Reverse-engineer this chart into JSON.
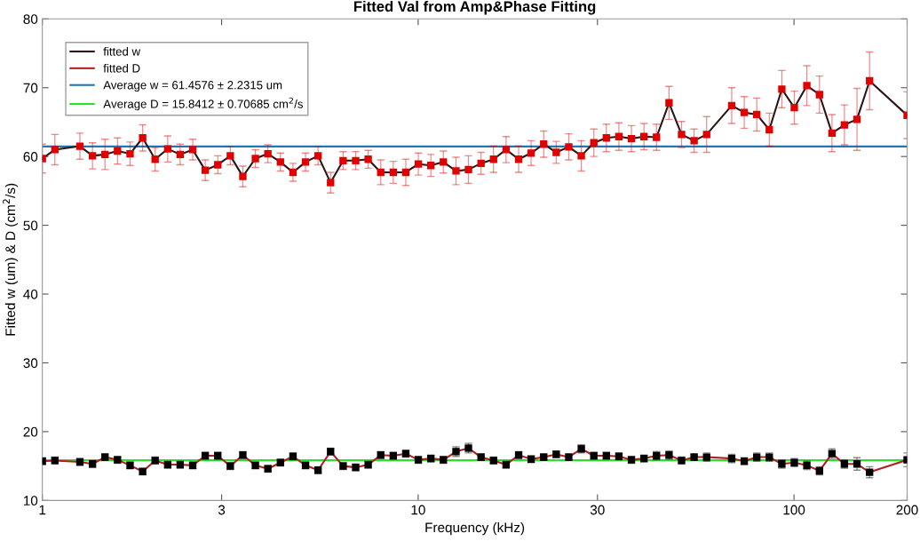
{
  "chart_data": {
    "type": "line",
    "title": "Fitted Val from Amp&Phase Fitting",
    "xlabel": "Frequency (kHz)",
    "ylabel": "Fitted w (um) & D (cm$^{2}$/s)",
    "x": [
      1.0,
      1.08,
      1.259,
      1.36,
      1.468,
      1.585,
      1.712,
      1.849,
      1.996,
      2.156,
      2.327,
      2.513,
      2.713,
      2.93,
      3.164,
      3.416,
      3.689,
      3.983,
      4.301,
      4.645,
      5.016,
      5.416,
      5.848,
      6.315,
      6.819,
      7.363,
      7.951,
      8.586,
      9.271,
      10.01,
      10.81,
      11.67,
      12.61,
      13.61,
      14.7,
      15.87,
      17.14,
      18.51,
      19.98,
      21.58,
      23.3,
      25.16,
      27.17,
      29.34,
      31.68,
      34.21,
      36.94,
      39.89,
      43.07,
      46.51,
      50.22,
      54.23,
      58.56,
      68.28,
      73.73,
      79.61,
      85.97,
      92.83,
      100.2,
      108.2,
      116.9,
      126.2,
      136.2,
      147.1,
      158.9,
      200
    ],
    "series": [
      {
        "name": "fitted w",
        "color": "#2a1414",
        "colors": [
          "#e00000",
          "#e00000",
          "#e00000",
          "#e00000",
          "#e00000",
          "#e00000",
          "#e00000",
          "#e00000",
          "#e00000",
          "#e00000",
          "#e00000",
          "#e00000",
          "#e00000",
          "#e00000",
          "#e00000",
          "#e00000",
          "#e00000",
          "#e00000",
          "#e00000",
          "#e00000",
          "#e00000",
          "#e00000",
          "#e00000",
          "#e00000",
          "#e00000",
          "#e00000",
          "#e00000",
          "#e00000",
          "#e00000",
          "#e00000",
          "#e00000",
          "#e00000",
          "#e00000",
          "#e00000",
          "#e00000",
          "#e00000",
          "#e00000",
          "#e00000",
          "#e00000",
          "#e00000",
          "#e00000",
          "#e00000",
          "#e00000",
          "#e00000",
          "#e00000",
          "#e00000",
          "#e00000",
          "#e00000",
          "#e00000",
          "#e00000",
          "#e00000",
          "#e00000",
          "#e00000",
          "#e00000",
          "#e00000",
          "#e00000",
          "#e00000",
          "#e00000",
          "#e00000",
          "#e00000",
          "#e00000",
          "#e00000",
          "#e00000",
          "#e00000",
          "#e00000",
          "#e00000"
        ],
        "values": [
          59.7,
          61.0,
          61.5,
          60.1,
          60.3,
          60.8,
          60.4,
          62.7,
          59.6,
          61.1,
          60.3,
          61.0,
          58.0,
          58.8,
          60.1,
          57.1,
          59.7,
          60.4,
          59.2,
          57.7,
          59.2,
          60.1,
          56.2,
          59.4,
          59.4,
          59.6,
          57.7,
          57.7,
          57.7,
          58.9,
          58.7,
          59.2,
          57.9,
          58.1,
          59.0,
          59.6,
          61.0,
          59.6,
          60.5,
          61.8,
          60.6,
          61.4,
          60.1,
          62.0,
          62.7,
          62.9,
          62.6,
          62.9,
          62.8,
          67.8,
          63.2,
          62.3,
          63.2,
          67.4,
          66.4,
          66.1,
          63.9,
          69.8,
          67.1,
          70.3,
          69.0,
          63.4,
          64.6,
          65.4,
          71.0,
          66.0
        ],
        "errors": [
          2.1,
          2.2,
          1.9,
          1.9,
          2.2,
          1.9,
          1.7,
          1.9,
          1.7,
          1.9,
          1.5,
          1.5,
          1.5,
          1.3,
          1.3,
          1.5,
          1.3,
          1.3,
          1.3,
          1.3,
          1.3,
          1.3,
          1.5,
          1.3,
          1.3,
          1.3,
          1.8,
          1.6,
          1.9,
          1.6,
          1.6,
          1.6,
          2.0,
          2.0,
          1.6,
          1.9,
          1.9,
          1.9,
          1.8,
          1.9,
          1.6,
          1.9,
          2.2,
          2.0,
          2.0,
          2.0,
          1.9,
          1.9,
          1.9,
          2.4,
          1.9,
          1.7,
          2.6,
          2.6,
          2.3,
          2.4,
          2.4,
          2.7,
          2.4,
          2.9,
          2.7,
          2.7,
          2.9,
          4.5,
          4.2,
          3.4
        ]
      },
      {
        "name": "fitted D",
        "color": "#b02020",
        "colors": [
          "#000000",
          "#000000",
          "#000000",
          "#000000",
          "#000000",
          "#000000",
          "#000000",
          "#000000",
          "#000000",
          "#000000",
          "#000000",
          "#000000",
          "#000000",
          "#000000",
          "#000000",
          "#000000",
          "#000000",
          "#000000",
          "#000000",
          "#000000",
          "#000000",
          "#000000",
          "#000000",
          "#000000",
          "#000000",
          "#000000",
          "#000000",
          "#000000",
          "#000000",
          "#000000",
          "#000000",
          "#000000",
          "#000000",
          "#000000",
          "#000000",
          "#000000",
          "#000000",
          "#000000",
          "#000000",
          "#000000",
          "#000000",
          "#000000",
          "#000000",
          "#000000",
          "#000000",
          "#000000",
          "#000000",
          "#000000",
          "#000000",
          "#000000",
          "#000000",
          "#000000",
          "#000000",
          "#000000",
          "#000000",
          "#000000",
          "#000000",
          "#000000",
          "#000000",
          "#000000",
          "#000000",
          "#000000",
          "#000000",
          "#000000",
          "#000000",
          "#000000"
        ],
        "values": [
          15.7,
          15.8,
          15.6,
          15.3,
          16.3,
          15.9,
          15.1,
          14.2,
          15.8,
          15.2,
          15.2,
          15.1,
          16.5,
          16.5,
          15.0,
          16.6,
          15.1,
          14.6,
          15.5,
          16.4,
          15.1,
          14.4,
          17.1,
          15.0,
          14.8,
          15.2,
          16.6,
          16.5,
          16.8,
          15.9,
          16.1,
          15.9,
          17.1,
          17.6,
          16.3,
          15.8,
          15.2,
          16.6,
          16.0,
          16.3,
          16.7,
          16.3,
          17.5,
          16.5,
          16.5,
          16.4,
          15.9,
          16.1,
          16.5,
          16.6,
          15.8,
          16.3,
          16.3,
          16.1,
          15.7,
          16.3,
          16.3,
          15.3,
          15.5,
          15.1,
          14.3,
          16.8,
          15.3,
          15.3,
          14.1,
          15.9
        ],
        "errors": [
          0.5,
          0.5,
          0.5,
          0.5,
          0.5,
          0.5,
          0.5,
          0.5,
          0.5,
          0.5,
          0.5,
          0.5,
          0.5,
          0.5,
          0.5,
          0.5,
          0.5,
          0.5,
          0.5,
          0.5,
          0.5,
          0.5,
          0.5,
          0.5,
          0.5,
          0.5,
          0.5,
          0.5,
          0.5,
          0.5,
          0.5,
          0.5,
          0.7,
          0.7,
          0.5,
          0.5,
          0.5,
          0.5,
          0.5,
          0.5,
          0.5,
          0.5,
          0.6,
          0.5,
          0.5,
          0.5,
          0.5,
          0.5,
          0.6,
          0.6,
          0.5,
          0.5,
          0.6,
          0.6,
          0.5,
          0.6,
          0.6,
          0.6,
          0.6,
          0.6,
          0.6,
          0.7,
          0.6,
          0.9,
          0.8,
          1.0
        ]
      }
    ],
    "ref_lines": [
      {
        "axis": "y",
        "value": 61.4576,
        "label": "Average w = 61.4576 ± 2.2315 um",
        "color": "#1f77b4"
      },
      {
        "axis": "y",
        "value": 15.8412,
        "label": "Average D = 15.8412 ± 0.70685 cm$^{2}$/s",
        "color": "#2ee02e"
      }
    ],
    "xlim": [
      1,
      200
    ],
    "xticks": [
      1,
      3,
      10,
      30,
      100,
      200
    ],
    "ylim": [
      10,
      80
    ],
    "yticks": [
      10,
      20,
      30,
      40,
      50,
      60,
      70,
      80
    ],
    "log": "x",
    "grid": false,
    "legend": "top left",
    "marker": "square",
    "line_style": "solid"
  }
}
